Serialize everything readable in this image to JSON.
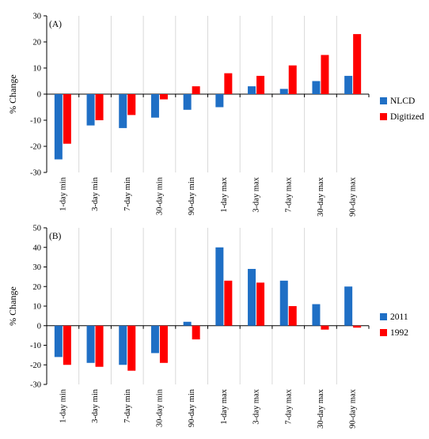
{
  "chart_data": [
    {
      "type": "bar",
      "panel_label": "(A)",
      "ylabel": "% Change",
      "ylim": [
        -30,
        30
      ],
      "yticks": [
        -30,
        -20,
        -10,
        0,
        10,
        20,
        30
      ],
      "categories": [
        "1-day min",
        "3-day min",
        "7-day min",
        "30-day min",
        "90-day min",
        "1-day max",
        "3-day max",
        "7-day max",
        "30-day max",
        "90-day max"
      ],
      "series": [
        {
          "name": "NLCD",
          "color": "#1f6fc5",
          "values": [
            -25,
            -12,
            -13,
            -9,
            -6,
            -5,
            3,
            2,
            5,
            7
          ]
        },
        {
          "name": "Digitized",
          "color": "#ff0000",
          "values": [
            -19,
            -10,
            -8,
            -2,
            3,
            8,
            7,
            11,
            15,
            23
          ]
        }
      ],
      "legend_position": "right",
      "grid": "vertical category separators"
    },
    {
      "type": "bar",
      "panel_label": "(B)",
      "ylabel": "% Change",
      "ylim": [
        -30,
        50
      ],
      "yticks": [
        -30,
        -20,
        -10,
        0,
        10,
        20,
        30,
        40,
        50
      ],
      "categories": [
        "1-day min",
        "3-day min",
        "7-day min",
        "30-day min",
        "90-day min",
        "1-day max",
        "3-day max",
        "7-day max",
        "30-day max",
        "90-day max"
      ],
      "series": [
        {
          "name": "2011",
          "color": "#1f6fc5",
          "values": [
            -16,
            -19,
            -20,
            -14,
            2,
            40,
            29,
            23,
            11,
            20
          ]
        },
        {
          "name": "1992",
          "color": "#ff0000",
          "values": [
            -20,
            -21,
            -23,
            -19,
            -7,
            23,
            22,
            10,
            -2,
            -1
          ]
        }
      ],
      "legend_position": "right",
      "grid": "vertical category separators"
    }
  ]
}
